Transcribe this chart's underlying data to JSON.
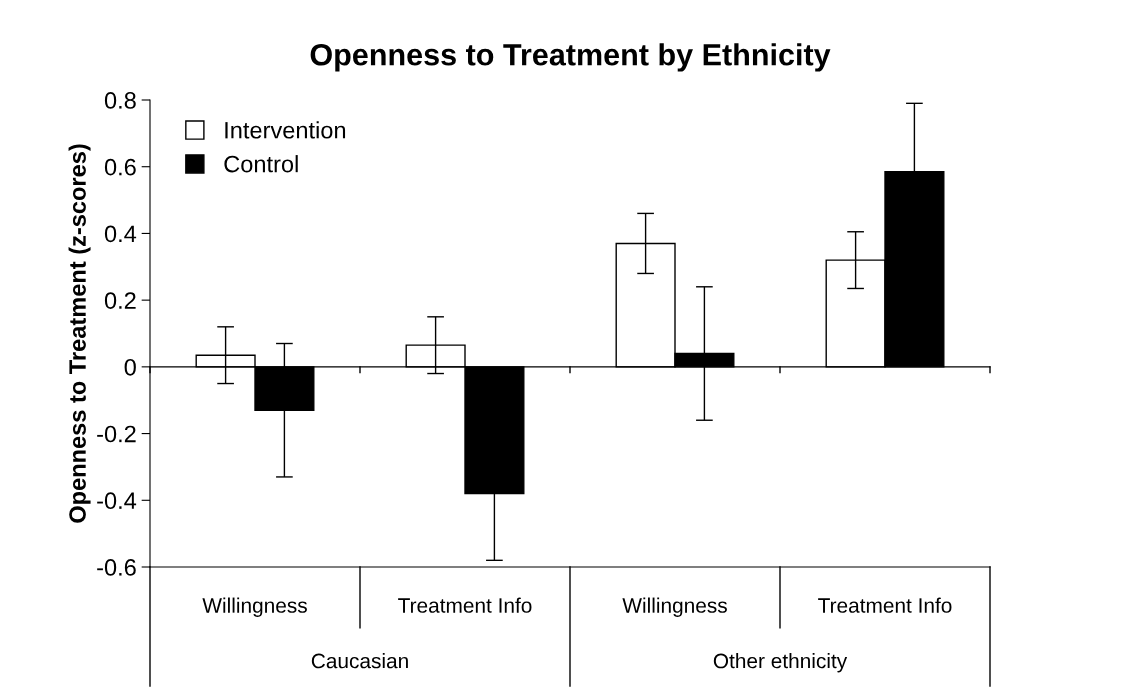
{
  "chart_data": {
    "type": "bar",
    "title": "Openness to Treatment by Ethnicity",
    "ylabel": "Openness to Treatment (z-scores)",
    "categories": [
      "Willingness",
      "Treatment Info",
      "Willingness",
      "Treatment Info"
    ],
    "series": [
      {
        "name": "Intervention",
        "color": "#ffffff",
        "values": [
          0.035,
          0.065,
          0.37,
          0.32
        ],
        "errors": [
          0.085,
          0.085,
          0.09,
          0.085
        ]
      },
      {
        "name": "Control",
        "color": "#000000",
        "values": [
          -0.13,
          -0.38,
          0.04,
          0.585
        ],
        "errors": [
          0.2,
          0.2,
          0.2,
          0.205
        ]
      }
    ],
    "annotations": [
      "Caucasian",
      "Other ethnicity"
    ],
    "ylim": [
      -0.6,
      0.8
    ],
    "yticks": [
      {
        "value": -0.6,
        "label": "-0.6"
      },
      {
        "value": -0.4,
        "label": "-0.4"
      },
      {
        "value": -0.2,
        "label": "-0.2"
      },
      0,
      0.2,
      0.4,
      0.6,
      0.8
    ],
    "legend": "top left"
  }
}
